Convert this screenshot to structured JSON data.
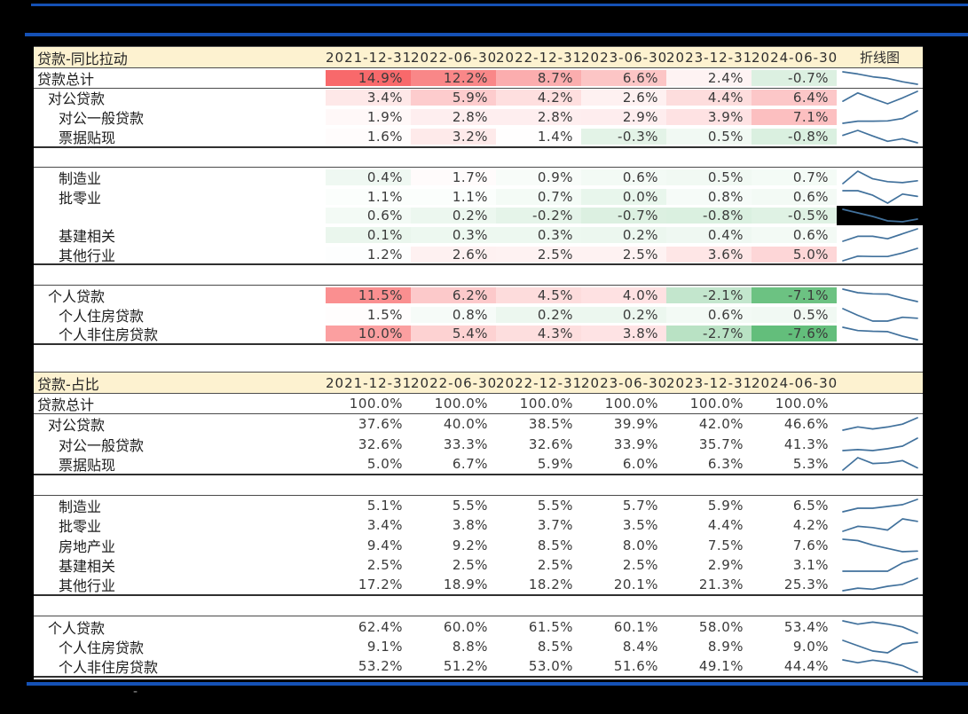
{
  "colors": {
    "accent_rule_blue": "#1551b5",
    "table_header_bg": "#fdf2d0",
    "table_border": "#4d4d4d",
    "sparkline_blue": "#41719c",
    "heat_red_max": "#F8696B",
    "heat_mid_white": "#FFFFFF",
    "heat_green_min": "#63BE7B",
    "redaction_black": "#000000"
  },
  "footer_mark": "-",
  "chart_data": [
    {
      "type": "table",
      "title": "贷款-同比拉动",
      "columns": [
        "2021-12-31",
        "2022-06-30",
        "2022-12-31",
        "2023-06-30",
        "2023-12-31",
        "2024-06-30"
      ],
      "sparkline_header": "折线图",
      "unit": "%",
      "heatmap": {
        "max": 14.9,
        "mid": 1.3,
        "min": -7.6,
        "max_color": "#F8696B",
        "mid_color": "#FFFFFF",
        "min_color": "#63BE7B"
      },
      "rows": [
        {
          "label": "贷款总计",
          "indent": 0,
          "values": [
            14.9,
            12.2,
            8.7,
            6.6,
            2.4,
            -0.7
          ],
          "border_bottom": "thin"
        },
        {
          "label": "对公贷款",
          "indent": 1,
          "values": [
            3.4,
            5.9,
            4.2,
            2.6,
            4.4,
            6.4
          ]
        },
        {
          "label": "对公一般贷款",
          "indent": 2,
          "values": [
            1.9,
            2.8,
            2.8,
            2.9,
            3.9,
            7.1
          ]
        },
        {
          "label": "票据贴现",
          "indent": 2,
          "values": [
            1.6,
            3.2,
            1.4,
            -0.3,
            0.5,
            -0.8
          ],
          "border_bottom": "thick"
        },
        {
          "spacer": true,
          "border_bottom": "thin"
        },
        {
          "label": "制造业",
          "indent": 2,
          "values": [
            0.4,
            1.7,
            0.9,
            0.6,
            0.5,
            0.7
          ]
        },
        {
          "label": "批零业",
          "indent": 2,
          "values": [
            1.1,
            1.1,
            0.7,
            0.0,
            0.8,
            0.6
          ]
        },
        {
          "label": "",
          "redacted": true,
          "indent": 2,
          "values": [
            0.6,
            0.2,
            -0.2,
            -0.7,
            -0.8,
            -0.5
          ]
        },
        {
          "label": "基建相关",
          "indent": 2,
          "values": [
            0.1,
            0.3,
            0.3,
            0.2,
            0.4,
            0.6
          ]
        },
        {
          "label": "其他行业",
          "indent": 2,
          "values": [
            1.2,
            2.6,
            2.5,
            2.5,
            3.6,
            5.0
          ],
          "border_bottom": "thick"
        },
        {
          "spacer": true,
          "border_bottom": "thin"
        },
        {
          "label": "个人贷款",
          "indent": 1,
          "values": [
            11.5,
            6.2,
            4.5,
            4.0,
            -2.1,
            -7.1
          ]
        },
        {
          "label": "个人住房贷款",
          "indent": 2,
          "values": [
            1.5,
            0.8,
            0.2,
            0.2,
            0.6,
            0.5
          ]
        },
        {
          "label": "个人非住房贷款",
          "indent": 2,
          "values": [
            10.0,
            5.4,
            4.3,
            3.8,
            -2.7,
            -7.6
          ],
          "border_bottom": "thick"
        }
      ]
    },
    {
      "type": "table",
      "title": "贷款-占比",
      "columns": [
        "2021-12-31",
        "2022-06-30",
        "2022-12-31",
        "2023-06-30",
        "2023-12-31",
        "2024-06-30"
      ],
      "sparkline_header": "",
      "unit": "%",
      "rows": [
        {
          "label": "贷款总计",
          "indent": 0,
          "values": [
            100.0,
            100.0,
            100.0,
            100.0,
            100.0,
            100.0
          ],
          "no_sparkline": true,
          "border_bottom": "thin"
        },
        {
          "label": "对公贷款",
          "indent": 1,
          "values": [
            37.6,
            40.0,
            38.5,
            39.9,
            42.0,
            46.6
          ]
        },
        {
          "label": "对公一般贷款",
          "indent": 2,
          "values": [
            32.6,
            33.3,
            32.6,
            33.9,
            35.7,
            41.3
          ]
        },
        {
          "label": "票据贴现",
          "indent": 2,
          "values": [
            5.0,
            6.7,
            5.9,
            6.0,
            6.3,
            5.3
          ],
          "border_bottom": "thick"
        },
        {
          "spacer": true,
          "border_bottom": "thin"
        },
        {
          "label": "制造业",
          "indent": 2,
          "values": [
            5.1,
            5.5,
            5.5,
            5.7,
            5.9,
            6.5
          ]
        },
        {
          "label": "批零业",
          "indent": 2,
          "values": [
            3.4,
            3.8,
            3.7,
            3.5,
            4.4,
            4.2
          ]
        },
        {
          "label": "房地产业",
          "indent": 2,
          "values": [
            9.4,
            9.2,
            8.5,
            8.0,
            7.5,
            7.6
          ]
        },
        {
          "label": "基建相关",
          "indent": 2,
          "values": [
            2.5,
            2.5,
            2.5,
            2.5,
            2.9,
            3.1
          ]
        },
        {
          "label": "其他行业",
          "indent": 2,
          "values": [
            17.2,
            18.9,
            18.2,
            20.1,
            21.3,
            25.3
          ],
          "border_bottom": "thick"
        },
        {
          "spacer": true,
          "border_bottom": "thin"
        },
        {
          "label": "个人贷款",
          "indent": 1,
          "values": [
            62.4,
            60.0,
            61.5,
            60.1,
            58.0,
            53.4
          ]
        },
        {
          "label": "个人住房贷款",
          "indent": 2,
          "values": [
            9.1,
            8.8,
            8.5,
            8.4,
            8.9,
            9.0
          ]
        },
        {
          "label": "个人非住房贷款",
          "indent": 2,
          "values": [
            53.2,
            51.2,
            53.0,
            51.6,
            49.1,
            44.4
          ],
          "border_bottom": "thick"
        }
      ]
    }
  ]
}
